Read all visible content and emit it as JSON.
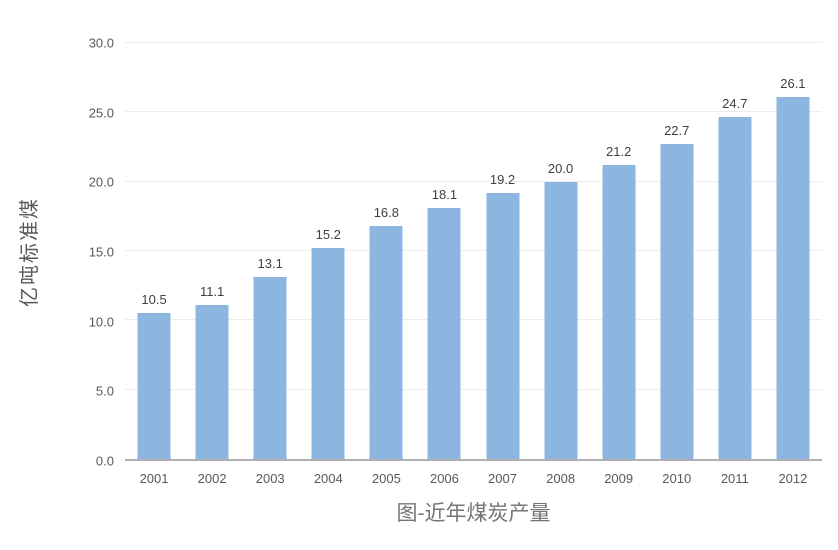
{
  "chart_data": {
    "type": "bar",
    "title": "图-近年煤炭产量",
    "ylabel": "亿吨标准煤",
    "xlabel": "",
    "categories": [
      "2001",
      "2002",
      "2003",
      "2004",
      "2005",
      "2006",
      "2007",
      "2008",
      "2009",
      "2010",
      "2011",
      "2012"
    ],
    "values": [
      10.5,
      11.1,
      13.1,
      15.2,
      16.8,
      18.1,
      19.2,
      20.0,
      21.2,
      22.7,
      24.7,
      26.1
    ],
    "ylim": [
      0,
      30
    ],
    "ytick_step": 5,
    "ytick_labels": [
      "0.0",
      "5.0",
      "10.0",
      "15.0",
      "20.0",
      "25.0",
      "30.0"
    ],
    "grid": true,
    "legend_position": "none",
    "data_labels": true,
    "colors": {
      "bar": "#8cb5e0",
      "gridline": "#ececec",
      "axis_line": "#b0b0b0",
      "tick_label": "#595959",
      "data_label": "#404040",
      "axis_title": "#595959",
      "chart_title": "#757575",
      "background": "#ffffff"
    }
  }
}
